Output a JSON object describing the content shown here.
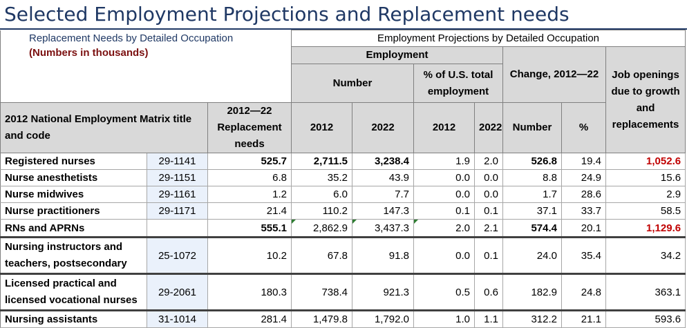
{
  "title": "Selected Employment Projections and Replacement needs",
  "header": {
    "replacement_group": "Replacement Needs by Detailed Occupation",
    "numbers_note": "(Numbers in thousands)",
    "projections_group": "Employment Projections by Detailed Occupation",
    "employment": "Employment",
    "number": "Number",
    "pct_us_total": "% of U.S. total employment",
    "change": "Change, 2012—22",
    "job_openings": "Job openings due to growth and replacements",
    "matrix_title": "2012 National Employment Matrix title and code",
    "replacement_needs": "2012—22 Replacement needs",
    "y2012": "2012",
    "y2022": "2022",
    "change_number": "Number",
    "change_pct": "%"
  },
  "rows": [
    {
      "title": "Registered nurses",
      "code": "29-1141",
      "repl": "525.7",
      "emp2012": "2,711.5",
      "emp2022": "3,238.4",
      "pct2012": "1.9",
      "pct2022": "2.0",
      "chg_num": "526.8",
      "chg_pct": "19.4",
      "openings": "1,052.6"
    },
    {
      "title": "Nurse anesthetists",
      "code": "29-1151",
      "repl": "6.8",
      "emp2012": "35.2",
      "emp2022": "43.9",
      "pct2012": "0.0",
      "pct2022": "0.0",
      "chg_num": "8.8",
      "chg_pct": "24.9",
      "openings": "15.6"
    },
    {
      "title": "Nurse midwives",
      "code": "29-1161",
      "repl": "1.2",
      "emp2012": "6.0",
      "emp2022": "7.7",
      "pct2012": "0.0",
      "pct2022": "0.0",
      "chg_num": "1.7",
      "chg_pct": "28.6",
      "openings": "2.9"
    },
    {
      "title": "Nurse practitioners",
      "code": "29-1171",
      "repl": "21.4",
      "emp2012": "110.2",
      "emp2022": "147.3",
      "pct2012": "0.1",
      "pct2022": "0.1",
      "chg_num": "37.1",
      "chg_pct": "33.7",
      "openings": "58.5"
    },
    {
      "title": "RNs and APRNs",
      "code": "",
      "repl": "555.1",
      "emp2012": "2,862.9",
      "emp2022": "3,437.3",
      "pct2012": "2.0",
      "pct2022": "2.1",
      "chg_num": "574.4",
      "chg_pct": "20.1",
      "openings": "1,129.6"
    },
    {
      "title": "Nursing instructors and teachers, postsecondary",
      "code": "25-1072",
      "repl": "10.2",
      "emp2012": "67.8",
      "emp2022": "91.8",
      "pct2012": "0.0",
      "pct2022": "0.1",
      "chg_num": "24.0",
      "chg_pct": "35.4",
      "openings": "34.2"
    },
    {
      "title": "Licensed practical and licensed vocational nurses",
      "code": "29-2061",
      "repl": "180.3",
      "emp2012": "738.4",
      "emp2022": "921.3",
      "pct2012": "0.5",
      "pct2022": "0.6",
      "chg_num": "182.9",
      "chg_pct": "24.8",
      "openings": "363.1"
    },
    {
      "title": "Nursing assistants",
      "code": "31-1014",
      "repl": "281.4",
      "emp2012": "1,479.8",
      "emp2022": "1,792.0",
      "pct2012": "1.0",
      "pct2022": "1.1",
      "chg_num": "312.2",
      "chg_pct": "21.1",
      "openings": "593.6"
    }
  ]
}
